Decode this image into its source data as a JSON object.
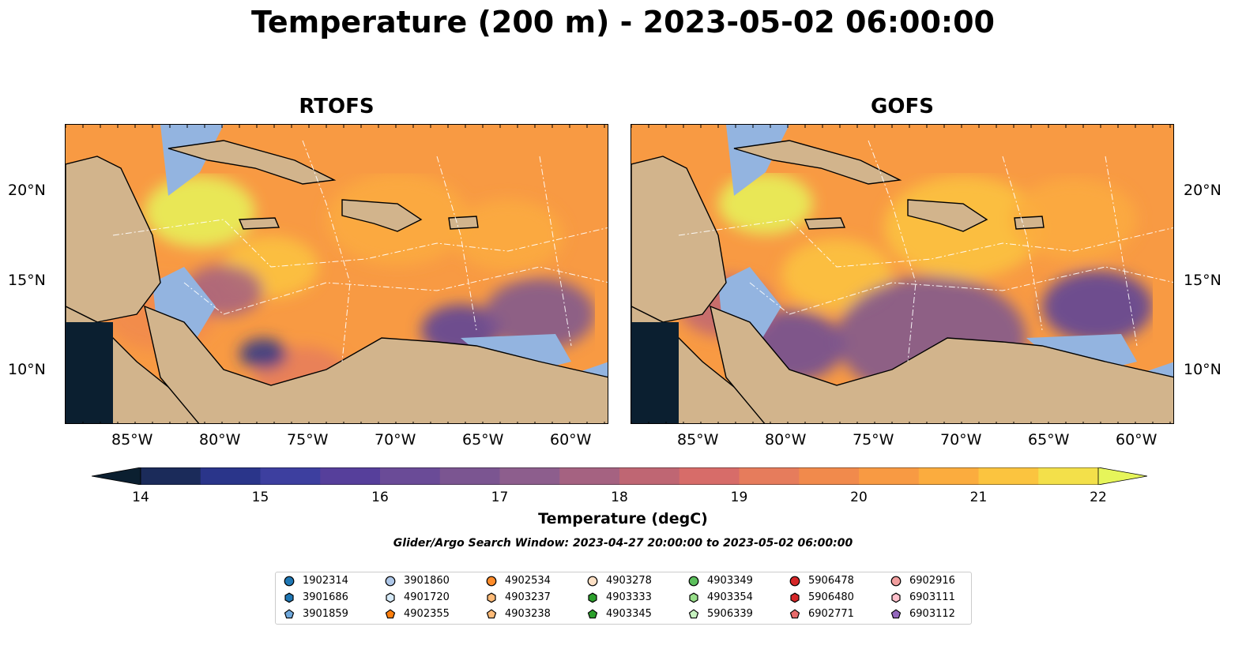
{
  "figure": {
    "title": "Temperature (200 m) - 2023-05-02 06:00:00",
    "panels": [
      {
        "title": "RTOFS"
      },
      {
        "title": "GOFS"
      }
    ],
    "lat_ticks": [
      "10°N",
      "15°N",
      "20°N"
    ],
    "lon_ticks": [
      "85°W",
      "80°W",
      "75°W",
      "70°W",
      "65°W",
      "60°W"
    ],
    "colorbar": {
      "label": "Temperature (degC)",
      "ticks": [
        "14",
        "15",
        "16",
        "17",
        "18",
        "19",
        "20",
        "21",
        "22"
      ],
      "range": [
        14,
        22
      ],
      "extend": "both",
      "colormap": [
        "#0b1f30",
        "#1b2b5a",
        "#2a358a",
        "#3d3f9f",
        "#563f9b",
        "#6a4b97",
        "#7b5591",
        "#8d5e8d",
        "#a56281",
        "#bf6673",
        "#d76c69",
        "#e67c5c",
        "#f18a4c",
        "#f89a43",
        "#fbac3e",
        "#fbc43f",
        "#f3e04a",
        "#e6f55a"
      ]
    },
    "search_window": "Glider/Argo Search Window: 2023-04-27 20:00:00 to 2023-05-02 06:00:00",
    "land_color": "#d2b48c",
    "shelf_color": "#93b4e0"
  },
  "legend": {
    "items": [
      {
        "id": "1902314",
        "marker": "circle",
        "color": "#1f77b4"
      },
      {
        "id": "3901686",
        "marker": "hexagon",
        "color": "#1f77b4"
      },
      {
        "id": "3901859",
        "marker": "pentagon",
        "color": "#6fa8dc"
      },
      {
        "id": "3901860",
        "marker": "circle",
        "color": "#aec7e8"
      },
      {
        "id": "4901720",
        "marker": "hexagon",
        "color": "#d6eaf8"
      },
      {
        "id": "4902355",
        "marker": "pentagon",
        "color": "#ff7f0e"
      },
      {
        "id": "4902534",
        "marker": "circle",
        "color": "#ff8c2a"
      },
      {
        "id": "4903237",
        "marker": "hexagon",
        "color": "#ffbb78"
      },
      {
        "id": "4903238",
        "marker": "pentagon",
        "color": "#ffbb78"
      },
      {
        "id": "4903278",
        "marker": "circle",
        "color": "#fde0c5"
      },
      {
        "id": "4903333",
        "marker": "hexagon",
        "color": "#2ca02c"
      },
      {
        "id": "4903345",
        "marker": "pentagon",
        "color": "#2ca02c"
      },
      {
        "id": "4903349",
        "marker": "circle",
        "color": "#5cbf5c"
      },
      {
        "id": "4903354",
        "marker": "hexagon",
        "color": "#98df8a"
      },
      {
        "id": "5906339",
        "marker": "pentagon",
        "color": "#c7f2c0"
      },
      {
        "id": "5906478",
        "marker": "circle",
        "color": "#d62728"
      },
      {
        "id": "5906480",
        "marker": "hexagon",
        "color": "#d62728"
      },
      {
        "id": "6902771",
        "marker": "pentagon",
        "color": "#e86a6a"
      },
      {
        "id": "6902916",
        "marker": "circle",
        "color": "#f19e9e"
      },
      {
        "id": "6903111",
        "marker": "hexagon",
        "color": "#ffc0cb"
      },
      {
        "id": "6903112",
        "marker": "pentagon",
        "color": "#9467bd"
      }
    ]
  }
}
